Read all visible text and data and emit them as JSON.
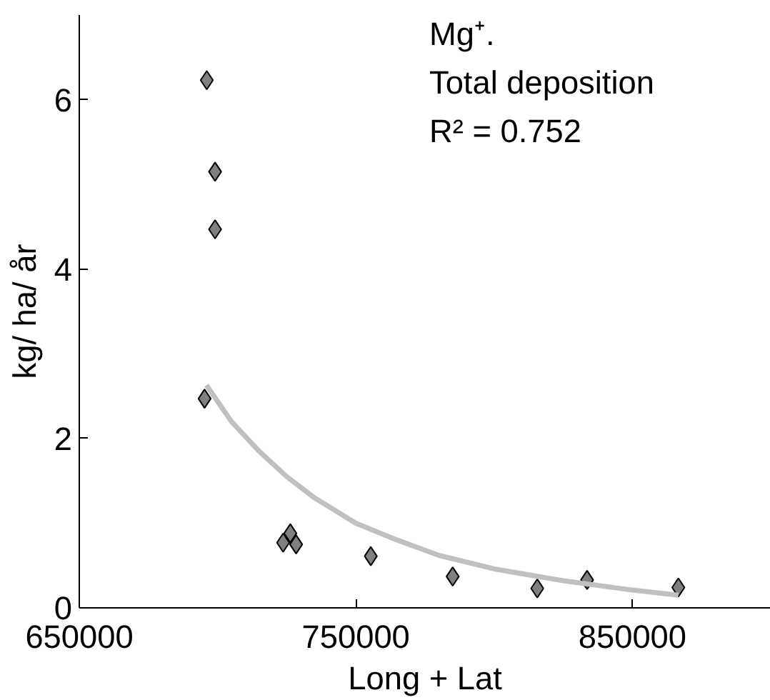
{
  "chart_data": {
    "type": "scatter",
    "xlabel": "Long + Lat",
    "ylabel": "kg/ ha/ år",
    "xlim": [
      650000,
      900000
    ],
    "xticks": [
      650000,
      750000,
      850000
    ],
    "ylim": [
      0,
      7
    ],
    "yticks": [
      0,
      2,
      4,
      6
    ],
    "grid": false,
    "annotations": [
      "Mg⁺.",
      "Total deposition",
      " R² = 0.752"
    ],
    "series": [
      {
        "color": "#808080",
        "marker": "diamond",
        "x": [
          696100,
          699100,
          699100,
          695300,
          723700,
          726300,
          728400,
          755400,
          785000,
          815600,
          833600,
          866600
        ],
        "values": [
          6.23,
          5.15,
          4.47,
          2.47,
          0.77,
          0.88,
          0.75,
          0.61,
          0.37,
          0.23,
          0.33,
          0.24
        ]
      },
      {
        "type": "line",
        "color": "#c0c0c0",
        "marker": "none",
        "x": [
          696000,
          705000,
          715000,
          725000,
          735000,
          750000,
          765000,
          780000,
          800000,
          825000,
          850000,
          866600
        ],
        "values": [
          2.63,
          2.2,
          1.85,
          1.55,
          1.3,
          1.0,
          0.8,
          0.62,
          0.46,
          0.32,
          0.21,
          0.15
        ]
      }
    ]
  }
}
